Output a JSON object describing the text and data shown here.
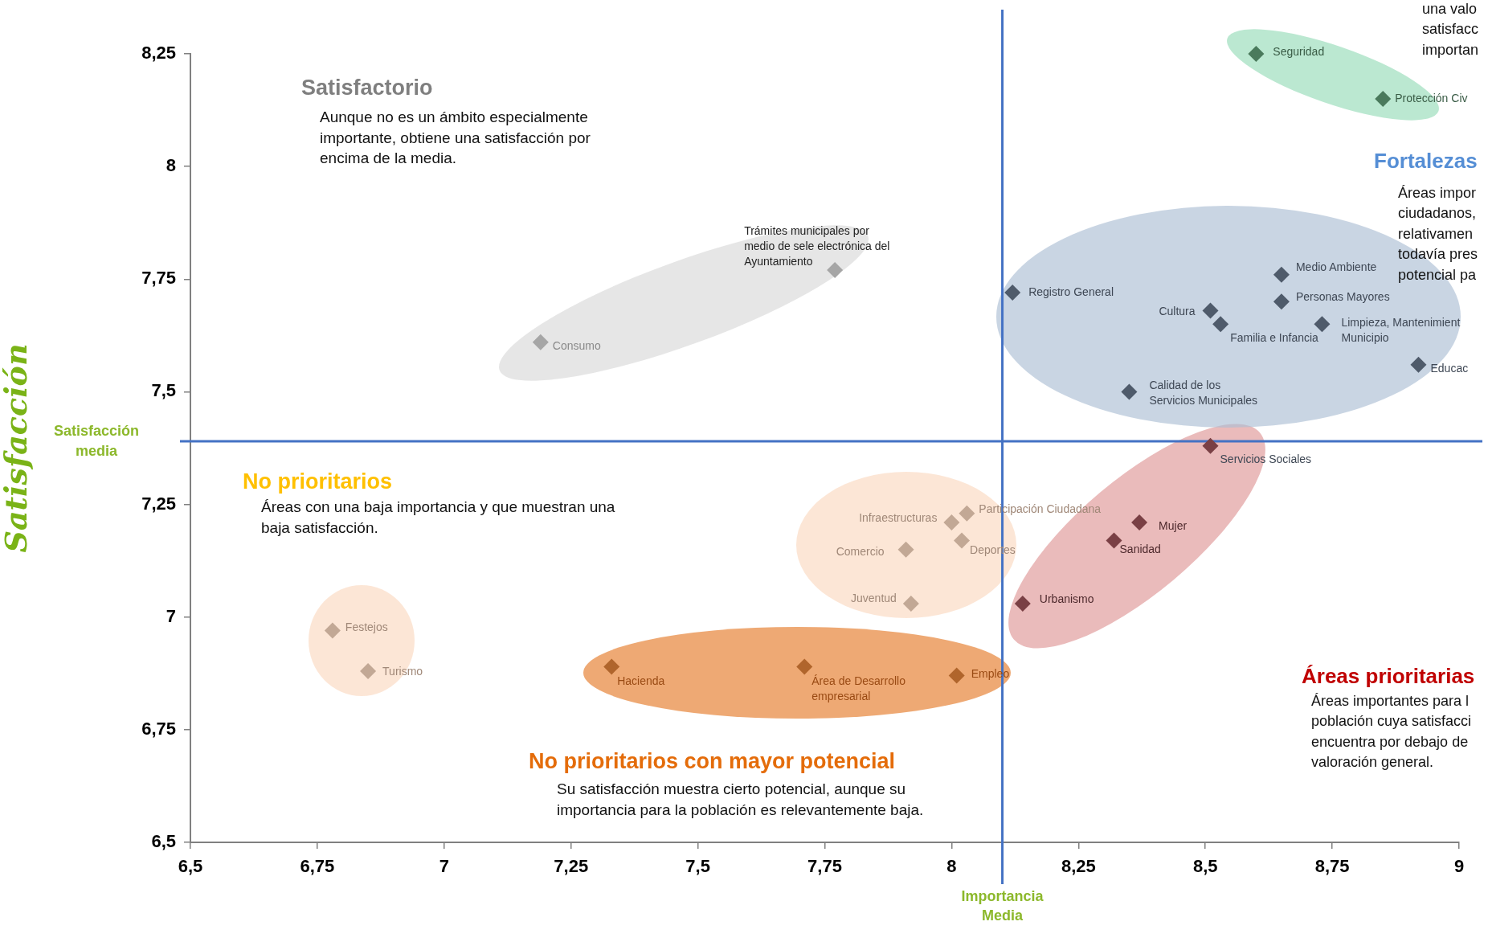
{
  "chart_data": {
    "type": "scatter",
    "ylabel": "Satisfacción",
    "marker": "diamond",
    "legend": false,
    "grid": false,
    "xlim": [
      6.5,
      9
    ],
    "ylim": [
      6.5,
      8.25
    ],
    "xticks": [
      {
        "value": 6.5,
        "label": "6,5"
      },
      {
        "value": 6.75,
        "label": "6,75"
      },
      7,
      {
        "value": 7.25,
        "label": "7,25"
      },
      {
        "value": 7.5,
        "label": "7,5"
      },
      {
        "value": 7.75,
        "label": "7,75"
      },
      8,
      {
        "value": 8.25,
        "label": "8,25"
      },
      {
        "value": 8.5,
        "label": "8,5"
      },
      {
        "value": 8.75,
        "label": "8,75"
      },
      9
    ],
    "yticks": [
      {
        "value": 6.5,
        "label": "6,5"
      },
      {
        "value": 6.75,
        "label": "6,75"
      },
      7,
      {
        "value": 7.25,
        "label": "7,25"
      },
      {
        "value": 7.5,
        "label": "7,5"
      },
      {
        "value": 7.75,
        "label": "7,75"
      },
      8,
      {
        "value": 8.25,
        "label": "8,25"
      }
    ],
    "series": [
      {
        "color": "#4a7a5c",
        "x": [
          8.6,
          8.85
        ],
        "values": [
          8.25,
          8.15
        ]
      },
      {
        "color": "#4f5b6b",
        "x": [
          8.12,
          8.65,
          8.65,
          8.51,
          8.53,
          8.73,
          8.92,
          8.35
        ],
        "values": [
          7.72,
          7.76,
          7.7,
          7.68,
          7.65,
          7.65,
          7.56,
          7.5
        ]
      },
      {
        "color": "#7a4045",
        "x": [
          8.51,
          8.37,
          8.32,
          8.14
        ],
        "values": [
          7.38,
          7.21,
          7.17,
          7.03
        ]
      },
      {
        "color": "#a6a6a6",
        "x": [
          7.77,
          7.19
        ],
        "values": [
          7.77,
          7.61
        ]
      },
      {
        "color": "#c2a895",
        "x": [
          8.0,
          8.03,
          8.02,
          7.91,
          7.92,
          6.78,
          6.85
        ],
        "values": [
          7.21,
          7.23,
          7.17,
          7.15,
          7.03,
          6.97,
          6.88
        ]
      },
      {
        "color": "#b0652c",
        "x": [
          7.33,
          7.71,
          8.01
        ],
        "values": [
          6.89,
          6.89,
          6.87
        ]
      }
    ],
    "ref_lines": [
      {
        "axis": "x",
        "value": 8.1,
        "label": "Importancia\nMedia",
        "color": "#4472c4"
      },
      {
        "axis": "y",
        "value": 7.39,
        "label": "Satisfacción\nmedia",
        "color": "#4472c4"
      }
    ],
    "annotations": [
      {
        "text": "Seguridad",
        "x": 8.6,
        "y": 8.25
      },
      {
        "text": "Protección Civ",
        "x": 8.85,
        "y": 8.15
      },
      {
        "text": "Registro General",
        "x": 8.12,
        "y": 7.72
      },
      {
        "text": "Medio Ambiente",
        "x": 8.65,
        "y": 7.76
      },
      {
        "text": "Personas Mayores",
        "x": 8.65,
        "y": 7.7
      },
      {
        "text": "Cultura",
        "x": 8.51,
        "y": 7.68
      },
      {
        "text": "Familia e Infancia",
        "x": 8.53,
        "y": 7.65
      },
      {
        "text": "Limpieza, Mantenimient\nMunicipio",
        "x": 8.73,
        "y": 7.65
      },
      {
        "text": "Educac",
        "x": 8.92,
        "y": 7.56
      },
      {
        "text": "Calidad de los\nServicios Municipales",
        "x": 8.35,
        "y": 7.5
      },
      {
        "text": "Servicios Sociales",
        "x": 8.51,
        "y": 7.38
      },
      {
        "text": "Mujer",
        "x": 8.37,
        "y": 7.21
      },
      {
        "text": "Sanidad",
        "x": 8.32,
        "y": 7.17
      },
      {
        "text": "Urbanismo",
        "x": 8.14,
        "y": 7.03
      },
      {
        "text": "Trámites municipales por\nmedio de sele electrónica del\nAyuntamiento",
        "x": 7.77,
        "y": 7.77
      },
      {
        "text": "Consumo",
        "x": 7.19,
        "y": 7.61
      },
      {
        "text": "Infraestructuras",
        "x": 8.0,
        "y": 7.21
      },
      {
        "text": "Participación Ciudadana",
        "x": 8.03,
        "y": 7.23
      },
      {
        "text": "Deportes",
        "x": 8.02,
        "y": 7.17
      },
      {
        "text": "Comercio",
        "x": 7.91,
        "y": 7.15
      },
      {
        "text": "Juventud",
        "x": 7.92,
        "y": 7.03
      },
      {
        "text": "Festejos",
        "x": 6.78,
        "y": 6.97
      },
      {
        "text": "Turismo",
        "x": 6.85,
        "y": 6.88
      },
      {
        "text": "Hacienda",
        "x": 7.33,
        "y": 6.89
      },
      {
        "text": "Área de Desarrollo\nempresarial",
        "x": 7.71,
        "y": 6.89
      },
      {
        "text": "Empleo",
        "x": 8.01,
        "y": 6.87
      },
      "Satisfactorio",
      "Aunque no es un ámbito especialmente\nimportante, obtiene una satisfacción por\nencima de la media.",
      "No prioritarios",
      "Áreas con una baja importancia y que muestran una\nbaja satisfacción.",
      "No prioritarios con mayor potencial",
      "Su satisfacción muestra cierto potencial, aunque su\nimportancia para la población es relevantemente baja.",
      "Fortalezas",
      "Áreas impor\nciudadanos,\nrelativamen\ntodavía pres\npotencial pa",
      "Áreas prioritarias",
      "Áreas importantes para l\npoblación cuya satisfacci\nencuentra por debajo de\nvaloración general.",
      "una valo\nsatisfacc\nimportan"
    ]
  }
}
